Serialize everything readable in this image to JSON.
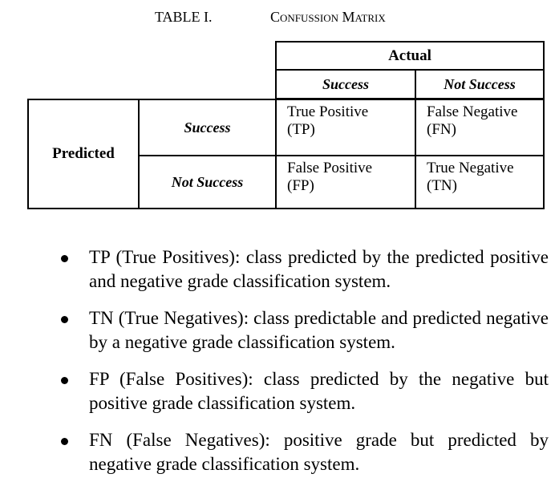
{
  "caption": {
    "label": "TABLE I.",
    "title": "Confussion Matrix"
  },
  "matrix": {
    "actual_header": "Actual",
    "predicted_header": "Predicted",
    "actual_columns": [
      "Success",
      "Not Success"
    ],
    "predicted_rows": [
      "Success",
      "Not Success"
    ],
    "cells": {
      "tp": {
        "name": "True Positive",
        "abbr": "(TP)"
      },
      "fn": {
        "name": "False Negative",
        "abbr": "(FN)"
      },
      "fp": {
        "name": "False Positive",
        "abbr": "(FP)"
      },
      "tn": {
        "name": "True Negative",
        "abbr": "(TN)"
      }
    }
  },
  "bullets": [
    "TP (True Positives): class predicted by the predicted positive and negative grade classification system.",
    "TN (True Negatives): class predictable and predicted negative by a negative grade classification system.",
    "FP (False Positives): class predicted by the negative but positive grade classification system.",
    "FN (False Negatives): positive grade but predicted by negative grade classification system."
  ]
}
